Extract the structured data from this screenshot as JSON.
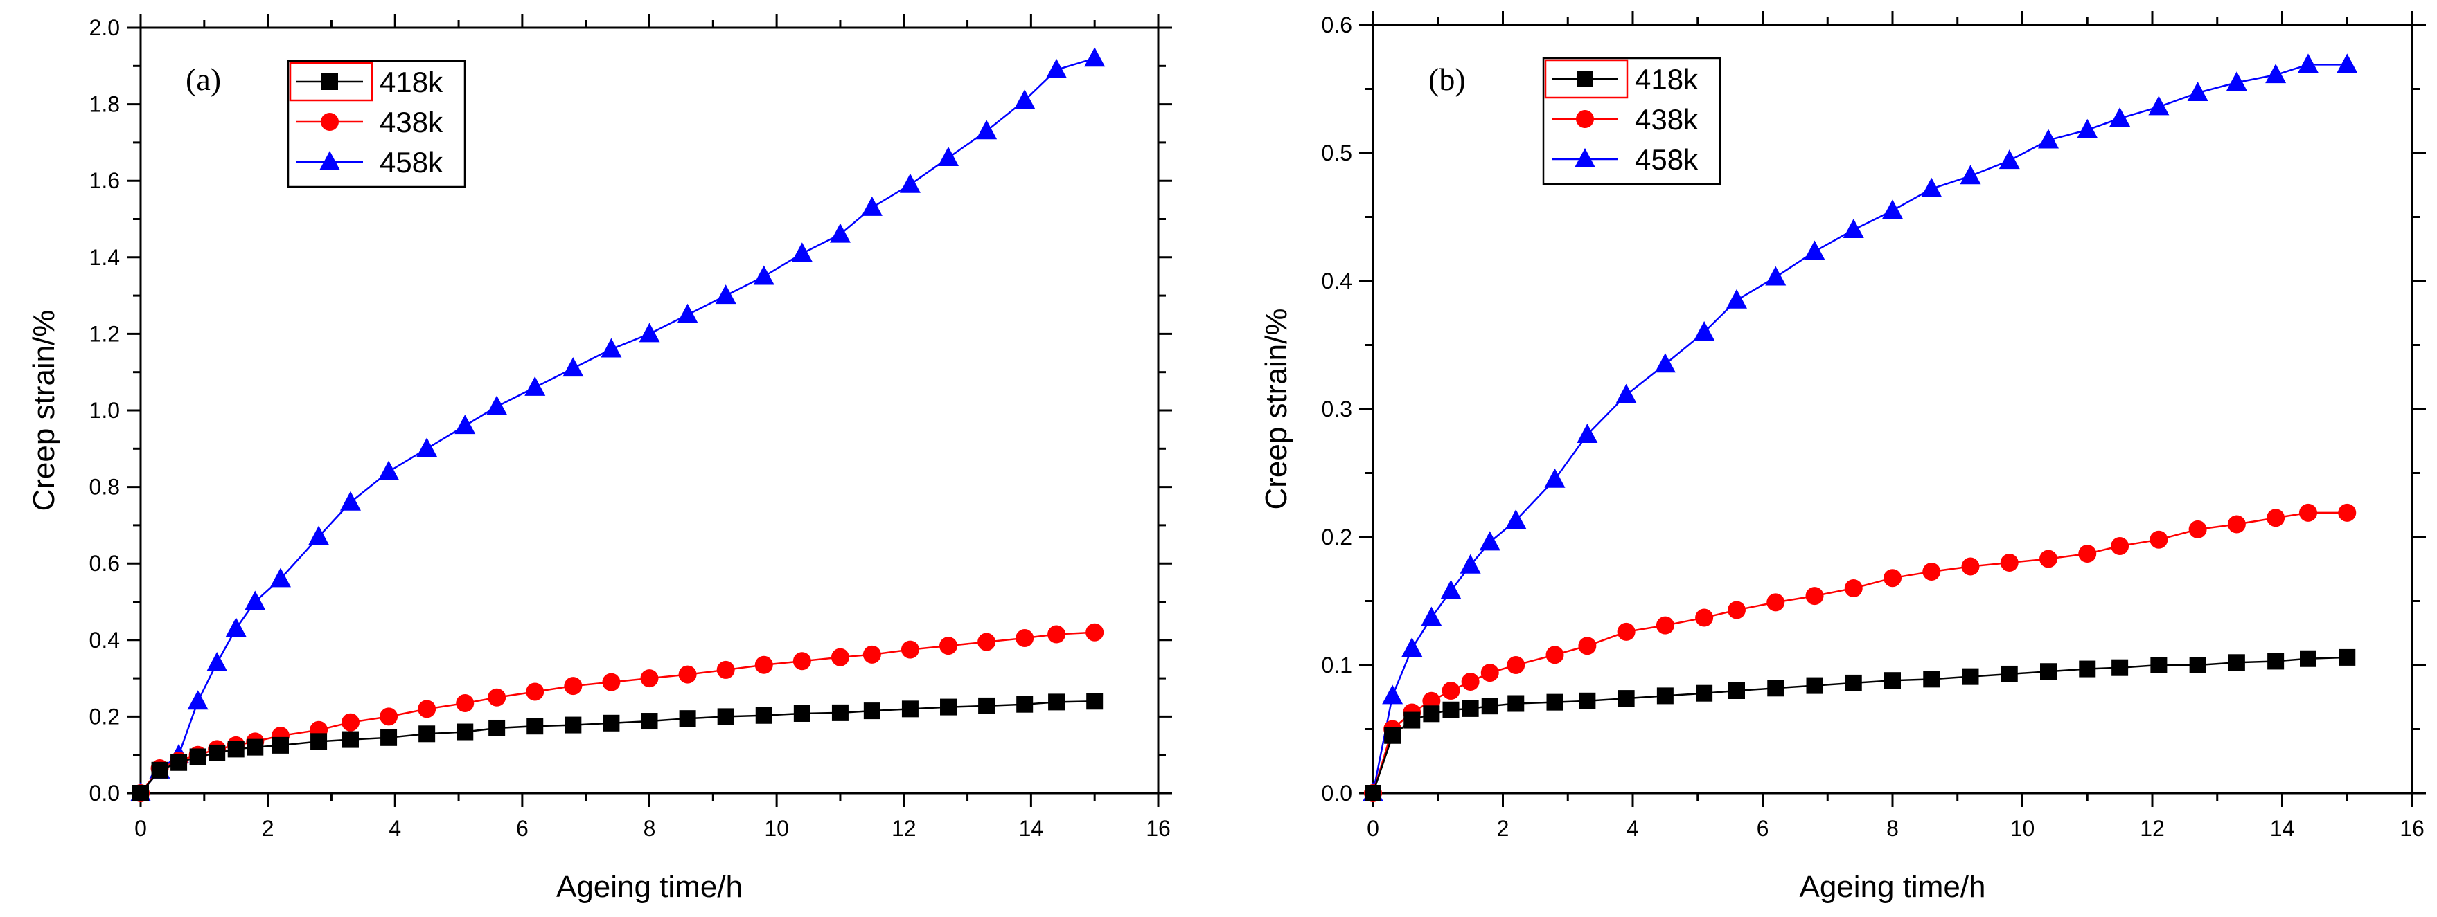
{
  "colors": {
    "s418": "#000000",
    "s438": "#ff0000",
    "s458": "#0000ff",
    "legend_frame": "#ff0000"
  },
  "chart_data": [
    {
      "type": "line",
      "panel_label": "(a)",
      "xlabel": "Ageing time/h",
      "ylabel": "Creep strain/%",
      "xlim": [
        0,
        16
      ],
      "ylim": [
        0,
        2.0
      ],
      "x_ticks": [
        "0",
        "2",
        "4",
        "6",
        "8",
        "10",
        "12",
        "14",
        "16"
      ],
      "y_ticks": [
        "0.0",
        "0.2",
        "0.4",
        "0.6",
        "0.8",
        "1.0",
        "1.2",
        "1.4",
        "1.6",
        "1.8",
        "2.0"
      ],
      "legend_position": "top-left",
      "series": [
        {
          "name": "418k",
          "color": "#000000",
          "marker": "square",
          "points": [
            [
              0,
              0
            ],
            [
              0.3,
              0.06
            ],
            [
              0.6,
              0.08
            ],
            [
              0.9,
              0.095
            ],
            [
              1.2,
              0.105
            ],
            [
              1.5,
              0.115
            ],
            [
              1.8,
              0.12
            ],
            [
              2.2,
              0.125
            ],
            [
              2.8,
              0.135
            ],
            [
              3.3,
              0.14
            ],
            [
              3.9,
              0.145
            ],
            [
              4.5,
              0.155
            ],
            [
              5.1,
              0.16
            ],
            [
              5.6,
              0.17
            ],
            [
              6.2,
              0.175
            ],
            [
              6.8,
              0.178
            ],
            [
              7.4,
              0.183
            ],
            [
              8.0,
              0.188
            ],
            [
              8.6,
              0.195
            ],
            [
              9.2,
              0.2
            ],
            [
              9.8,
              0.203
            ],
            [
              10.4,
              0.208
            ],
            [
              11.0,
              0.21
            ],
            [
              11.5,
              0.215
            ],
            [
              12.1,
              0.22
            ],
            [
              12.7,
              0.225
            ],
            [
              13.3,
              0.228
            ],
            [
              13.9,
              0.232
            ],
            [
              14.4,
              0.238
            ],
            [
              15.0,
              0.24
            ]
          ]
        },
        {
          "name": "438k",
          "color": "#ff0000",
          "marker": "circle",
          "points": [
            [
              0,
              0
            ],
            [
              0.3,
              0.065
            ],
            [
              0.6,
              0.085
            ],
            [
              0.9,
              0.1
            ],
            [
              1.2,
              0.115
            ],
            [
              1.5,
              0.125
            ],
            [
              1.8,
              0.135
            ],
            [
              2.2,
              0.15
            ],
            [
              2.8,
              0.165
            ],
            [
              3.3,
              0.185
            ],
            [
              3.9,
              0.2
            ],
            [
              4.5,
              0.22
            ],
            [
              5.1,
              0.235
            ],
            [
              5.6,
              0.25
            ],
            [
              6.2,
              0.265
            ],
            [
              6.8,
              0.28
            ],
            [
              7.4,
              0.29
            ],
            [
              8.0,
              0.3
            ],
            [
              8.6,
              0.31
            ],
            [
              9.2,
              0.322
            ],
            [
              9.8,
              0.335
            ],
            [
              10.4,
              0.345
            ],
            [
              11.0,
              0.355
            ],
            [
              11.5,
              0.362
            ],
            [
              12.1,
              0.375
            ],
            [
              12.7,
              0.385
            ],
            [
              13.3,
              0.395
            ],
            [
              13.9,
              0.405
            ],
            [
              14.4,
              0.415
            ],
            [
              15.0,
              0.42
            ]
          ]
        },
        {
          "name": "458k",
          "color": "#0000ff",
          "marker": "triangle",
          "points": [
            [
              0,
              0
            ],
            [
              0.3,
              0.06
            ],
            [
              0.6,
              0.1
            ],
            [
              0.9,
              0.24
            ],
            [
              1.2,
              0.34
            ],
            [
              1.5,
              0.43
            ],
            [
              1.8,
              0.5
            ],
            [
              2.2,
              0.56
            ],
            [
              2.8,
              0.67
            ],
            [
              3.3,
              0.76
            ],
            [
              3.9,
              0.84
            ],
            [
              4.5,
              0.9
            ],
            [
              5.1,
              0.96
            ],
            [
              5.6,
              1.01
            ],
            [
              6.2,
              1.06
            ],
            [
              6.8,
              1.11
            ],
            [
              7.4,
              1.16
            ],
            [
              8.0,
              1.2
            ],
            [
              8.6,
              1.25
            ],
            [
              9.2,
              1.3
            ],
            [
              9.8,
              1.35
            ],
            [
              10.4,
              1.41
            ],
            [
              11.0,
              1.46
            ],
            [
              11.5,
              1.53
            ],
            [
              12.1,
              1.59
            ],
            [
              12.7,
              1.66
            ],
            [
              13.3,
              1.73
            ],
            [
              13.9,
              1.81
            ],
            [
              14.4,
              1.89
            ],
            [
              15.0,
              1.92
            ]
          ]
        }
      ]
    },
    {
      "type": "line",
      "panel_label": "(b)",
      "xlabel": "Ageing time/h",
      "ylabel": "Creep strain/%",
      "xlim": [
        0,
        16
      ],
      "ylim": [
        0,
        0.6
      ],
      "x_ticks": [
        "0",
        "2",
        "4",
        "6",
        "8",
        "10",
        "12",
        "14",
        "16"
      ],
      "y_ticks": [
        "0.0",
        "0.1",
        "0.2",
        "0.3",
        "0.4",
        "0.5",
        "0.6"
      ],
      "legend_position": "top-left",
      "series": [
        {
          "name": "418k",
          "color": "#000000",
          "marker": "square",
          "points": [
            [
              0,
              0
            ],
            [
              0.3,
              0.045
            ],
            [
              0.6,
              0.057
            ],
            [
              0.9,
              0.062
            ],
            [
              1.2,
              0.065
            ],
            [
              1.5,
              0.066
            ],
            [
              1.8,
              0.068
            ],
            [
              2.2,
              0.07
            ],
            [
              2.8,
              0.071
            ],
            [
              3.3,
              0.072
            ],
            [
              3.9,
              0.074
            ],
            [
              4.5,
              0.076
            ],
            [
              5.1,
              0.078
            ],
            [
              5.6,
              0.08
            ],
            [
              6.2,
              0.082
            ],
            [
              6.8,
              0.084
            ],
            [
              7.4,
              0.086
            ],
            [
              8.0,
              0.088
            ],
            [
              8.6,
              0.089
            ],
            [
              9.2,
              0.091
            ],
            [
              9.8,
              0.093
            ],
            [
              10.4,
              0.095
            ],
            [
              11.0,
              0.097
            ],
            [
              11.5,
              0.098
            ],
            [
              12.1,
              0.1
            ],
            [
              12.7,
              0.1
            ],
            [
              13.3,
              0.102
            ],
            [
              13.9,
              0.103
            ],
            [
              14.4,
              0.105
            ],
            [
              15.0,
              0.106
            ]
          ]
        },
        {
          "name": "438k",
          "color": "#ff0000",
          "marker": "circle",
          "points": [
            [
              0,
              0
            ],
            [
              0.3,
              0.05
            ],
            [
              0.6,
              0.063
            ],
            [
              0.9,
              0.072
            ],
            [
              1.2,
              0.08
            ],
            [
              1.5,
              0.087
            ],
            [
              1.8,
              0.094
            ],
            [
              2.2,
              0.1
            ],
            [
              2.8,
              0.108
            ],
            [
              3.3,
              0.115
            ],
            [
              3.9,
              0.126
            ],
            [
              4.5,
              0.131
            ],
            [
              5.1,
              0.137
            ],
            [
              5.6,
              0.143
            ],
            [
              6.2,
              0.149
            ],
            [
              6.8,
              0.154
            ],
            [
              7.4,
              0.16
            ],
            [
              8.0,
              0.168
            ],
            [
              8.6,
              0.173
            ],
            [
              9.2,
              0.177
            ],
            [
              9.8,
              0.18
            ],
            [
              10.4,
              0.183
            ],
            [
              11.0,
              0.187
            ],
            [
              11.5,
              0.193
            ],
            [
              12.1,
              0.198
            ],
            [
              12.7,
              0.206
            ],
            [
              13.3,
              0.21
            ],
            [
              13.9,
              0.215
            ],
            [
              14.4,
              0.219
            ],
            [
              15.0,
              0.219
            ]
          ]
        },
        {
          "name": "458k",
          "color": "#0000ff",
          "marker": "triangle",
          "points": [
            [
              0,
              0
            ],
            [
              0.3,
              0.076
            ],
            [
              0.6,
              0.113
            ],
            [
              0.9,
              0.137
            ],
            [
              1.2,
              0.158
            ],
            [
              1.5,
              0.178
            ],
            [
              1.8,
              0.196
            ],
            [
              2.2,
              0.213
            ],
            [
              2.8,
              0.245
            ],
            [
              3.3,
              0.28
            ],
            [
              3.9,
              0.311
            ],
            [
              4.5,
              0.335
            ],
            [
              5.1,
              0.36
            ],
            [
              5.6,
              0.385
            ],
            [
              6.2,
              0.403
            ],
            [
              6.8,
              0.423
            ],
            [
              7.4,
              0.44
            ],
            [
              8.0,
              0.455
            ],
            [
              8.6,
              0.472
            ],
            [
              9.2,
              0.482
            ],
            [
              9.8,
              0.494
            ],
            [
              10.4,
              0.51
            ],
            [
              11.0,
              0.518
            ],
            [
              11.5,
              0.527
            ],
            [
              12.1,
              0.536
            ],
            [
              12.7,
              0.547
            ],
            [
              13.3,
              0.555
            ],
            [
              13.9,
              0.561
            ],
            [
              14.4,
              0.569
            ],
            [
              15.0,
              0.569
            ]
          ]
        }
      ]
    }
  ]
}
